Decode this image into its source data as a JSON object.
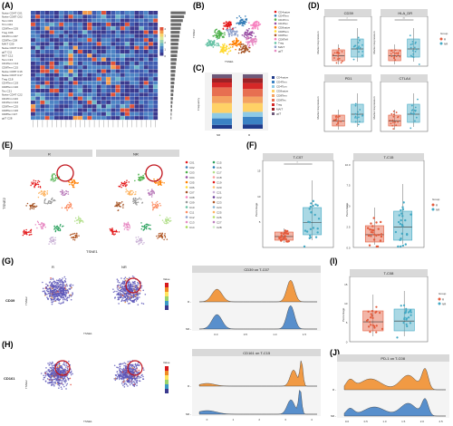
{
  "panels": {
    "A": "(A)",
    "B": "(B)",
    "C": "(C)",
    "D": "(D)",
    "E": "(E)",
    "F": "(F)",
    "G": "(G)",
    "H": "(H)",
    "I": "(I)",
    "J": "(J)"
  },
  "panelA": {
    "row_labels": [
      "Naive CD4T",
      "Naive CD8T",
      "Tem",
      "Tcm",
      "CD8Tem",
      "Treg",
      "CD4Tcm",
      "CD8Tex",
      "MAIT",
      "Naive CD4T",
      "gdT",
      "NKT",
      "Tem",
      "CD4Tem",
      "CD8Tem",
      "Naive CD8T",
      "Naive CD4T",
      "Treg",
      "CD4Tem",
      "CD8Tem",
      "Tex",
      "Naive CD4T",
      "CD4Tcm",
      "CD4Tem",
      "CD8Tem",
      "CD8Tem",
      "CD8Tex",
      "gdT"
    ],
    "row_ids": [
      "C01",
      "C02",
      "C03",
      "C04",
      "C05",
      "C06",
      "C07",
      "C08",
      "C09",
      "C10",
      "C11",
      "C12",
      "C13",
      "C14",
      "C15",
      "C16",
      "C17",
      "C18",
      "C19",
      "C20",
      "C21",
      "C22",
      "C23",
      "C24",
      "C25",
      "C26",
      "C27",
      "C28"
    ],
    "bar_values": [
      0.82,
      0.74,
      0.67,
      0.58,
      0.55,
      0.5,
      0.48,
      0.45,
      0.42,
      0.41,
      0.38,
      0.35,
      0.33,
      0.3,
      0.28,
      0.26,
      0.24,
      0.22,
      0.2,
      0.18,
      0.16,
      0.14,
      0.12,
      0.1,
      0.08,
      0.07,
      0.05,
      0.04
    ],
    "legend_ticks": [
      "0",
      "1",
      "2",
      "3",
      "4"
    ]
  },
  "panelB": {
    "xlabel": "TSNE1",
    "ylabel": "TSNE2",
    "legend": [
      "CD4naive",
      "CD4Tem",
      "CD4Tcm",
      "CD4Tex",
      "CD8naive",
      "CD8Tem",
      "CD8Tex",
      "CD8Teff",
      "Treg",
      "MAIT",
      "gdT"
    ],
    "colors": [
      "#e41a1c",
      "#377eb8",
      "#4daf4a",
      "#984ea3",
      "#ff7f00",
      "#ffd92f",
      "#a65628",
      "#f781bf",
      "#66c2a5",
      "#8da0cb",
      "#e78ac3"
    ]
  },
  "panelC": {
    "ylabel": "Frequency",
    "categories": [
      "NR",
      "R"
    ],
    "legend": [
      "CD4naive",
      "CD4Tem",
      "CD4Tcm",
      "CD8naive",
      "CD8Tem",
      "CD8Tex",
      "Treg",
      "MAIT",
      "gdT"
    ],
    "colors": [
      "#1f3a8a",
      "#3b82c4",
      "#8ecae6",
      "#ffd166",
      "#f4a261",
      "#e76f51",
      "#d62828",
      "#9b2226",
      "#6d597a"
    ],
    "stacks": [
      [
        0.07,
        0.12,
        0.1,
        0.18,
        0.13,
        0.16,
        0.09,
        0.08,
        0.07
      ],
      [
        0.08,
        0.14,
        0.09,
        0.16,
        0.12,
        0.14,
        0.11,
        0.09,
        0.07
      ]
    ]
  },
  "panelD": {
    "subplots": [
      {
        "title": "CD39",
        "sig": "*",
        "ylabel": "Marker Expression"
      },
      {
        "title": "HLA_DR",
        "sig": "**",
        "ylabel": "Marker Expression"
      },
      {
        "title": "PD1",
        "sig": "",
        "ylabel": "Marker Expression"
      },
      {
        "title": "CTLA4",
        "sig": "",
        "ylabel": "Marker Expression"
      }
    ],
    "legend_title": "Group",
    "legend": [
      "R",
      "NR"
    ]
  },
  "panelE": {
    "titles": [
      "R",
      "NR"
    ],
    "xlabel": "TSNE1",
    "ylabel": "TSNE2",
    "legend": [
      "C01",
      "C02",
      "C03",
      "C04",
      "C05",
      "C06",
      "C07",
      "C08",
      "C09",
      "C10",
      "C11",
      "C12",
      "C13",
      "C14",
      "C15",
      "C16",
      "C17",
      "C18",
      "C19",
      "C20",
      "C21",
      "C22",
      "C23",
      "C24",
      "C25",
      "C26",
      "C27",
      "C28"
    ]
  },
  "panelF": {
    "plots": [
      {
        "title": "T-C07",
        "sig": "*",
        "yticks": [
          "5",
          "10",
          "15"
        ],
        "ylim": [
          0,
          17
        ]
      },
      {
        "title": "T-C15",
        "sig": "",
        "yticks": [
          "0.0",
          "2.5",
          "5.0",
          "7.5",
          "10.0"
        ],
        "ylim": [
          0,
          10.5
        ]
      }
    ],
    "ylabel": "Percentage",
    "legend_title": "Group",
    "legend": [
      "R",
      "NR"
    ]
  },
  "panelG": {
    "titles": [
      "R",
      "NR"
    ],
    "row_label": "CD39",
    "xlabel": "TSNE1",
    "ylabel": "TSNE2",
    "legend_title": "Value",
    "ridge_title": "CD39 on T-C07",
    "xticks": [
      "0.0",
      "0.5",
      "1.0",
      "1.5"
    ],
    "xlim": [
      -0.3,
      1.7
    ],
    "groups": [
      "R -",
      "NR -"
    ]
  },
  "panelH": {
    "row_label": "CD161",
    "xlabel": "TSNE1",
    "ylabel": "TSNE2",
    "legend_title": "Value",
    "ridge_title": "CD161 on T-C15",
    "xticks": [
      "0",
      "1",
      "2",
      "3",
      "4"
    ],
    "xlim": [
      -0.3,
      4.2
    ],
    "groups": [
      "R -",
      "NR -"
    ]
  },
  "panelI": {
    "title": "T-C08",
    "ylabel": "Percentage",
    "yticks": [
      "0",
      "5",
      "10",
      "15"
    ],
    "ylim": [
      0,
      17
    ],
    "legend_title": "Group",
    "legend": [
      "R",
      "NR"
    ]
  },
  "panelJ": {
    "title": "PD-1 on T-C08",
    "xticks": [
      "0.0",
      "0.5",
      "1.0",
      "1.5",
      "2.0",
      "2.5"
    ],
    "xlim": [
      -0.1,
      2.6
    ],
    "groups": [
      "R -",
      "NR -"
    ]
  },
  "colors": {
    "R": "#e35b3c",
    "NR": "#43a9c4",
    "ridgeR": "#f08a24",
    "ridgeNR": "#3c7dc4",
    "titleBar": "#d9d9d9"
  }
}
